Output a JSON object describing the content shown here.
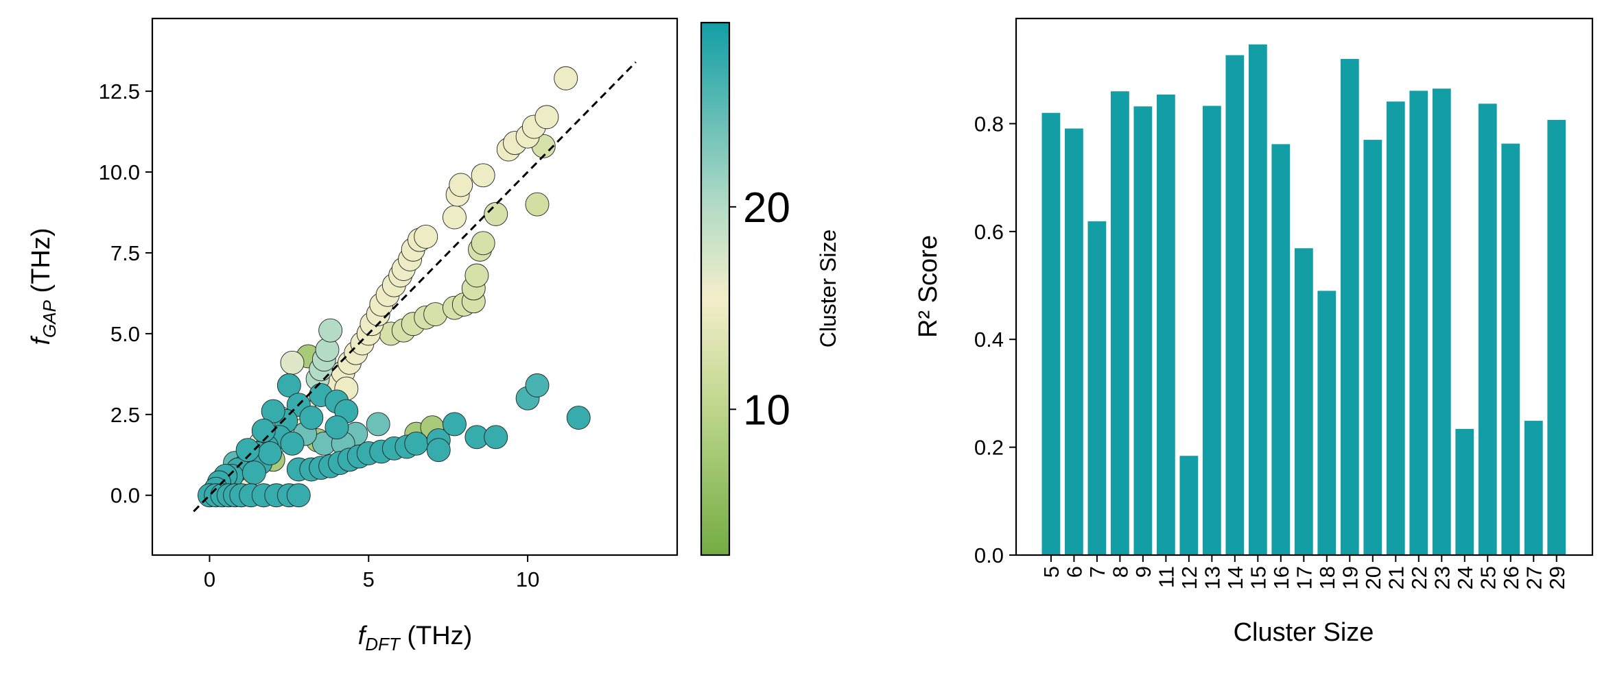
{
  "chart_data": [
    {
      "type": "scatter",
      "xlabel": {
        "main": "f",
        "sub": "DFT",
        "unit": " (THz)"
      },
      "ylabel": {
        "main": "f",
        "sub": "GAP",
        "unit": " (THz)"
      },
      "xlim": [
        -1.8,
        14.7
      ],
      "ylim": [
        -1.85,
        14.75
      ],
      "xticks": [
        0,
        5,
        10
      ],
      "xtick_labels": [
        "0",
        "5",
        "10"
      ],
      "yticks": [
        0,
        2.5,
        5,
        7.5,
        10,
        12.5
      ],
      "ytick_labels": [
        "0.0",
        "2.5",
        "5.0",
        "7.5",
        "10.0",
        "12.5"
      ],
      "reference_line": {
        "from": [
          -0.5,
          -0.5
        ],
        "to": [
          13.4,
          13.4
        ],
        "style": "dashed",
        "color": "#000000"
      },
      "colorbar": {
        "label": "Cluster Size",
        "range": [
          2.8,
          29.1
        ],
        "ticks": [
          10,
          20
        ],
        "tick_labels": [
          "10",
          "20"
        ],
        "stops": [
          {
            "value": 2.8,
            "color": "#74ac43"
          },
          {
            "value": 10,
            "color": "#bdd68c"
          },
          {
            "value": 15.5,
            "color": "#f3eecb"
          },
          {
            "value": 20,
            "color": "#b3dbc6"
          },
          {
            "value": 29.1,
            "color": "#129ea6"
          }
        ]
      },
      "points": [
        {
          "x": 3.8,
          "y": 3.2,
          "c": 15
        },
        {
          "x": 4.0,
          "y": 3.5,
          "c": 15
        },
        {
          "x": 4.2,
          "y": 3.8,
          "c": 15
        },
        {
          "x": 4.4,
          "y": 4.1,
          "c": 15
        },
        {
          "x": 4.6,
          "y": 4.4,
          "c": 15
        },
        {
          "x": 4.8,
          "y": 4.7,
          "c": 15
        },
        {
          "x": 5.0,
          "y": 5.0,
          "c": 15
        },
        {
          "x": 5.1,
          "y": 5.3,
          "c": 15
        },
        {
          "x": 5.3,
          "y": 5.6,
          "c": 15
        },
        {
          "x": 5.4,
          "y": 5.9,
          "c": 15
        },
        {
          "x": 5.6,
          "y": 6.2,
          "c": 15
        },
        {
          "x": 5.8,
          "y": 6.5,
          "c": 15
        },
        {
          "x": 6.0,
          "y": 6.8,
          "c": 15
        },
        {
          "x": 6.1,
          "y": 7.0,
          "c": 15
        },
        {
          "x": 6.3,
          "y": 7.3,
          "c": 15
        },
        {
          "x": 6.4,
          "y": 7.6,
          "c": 15
        },
        {
          "x": 6.6,
          "y": 7.9,
          "c": 15
        },
        {
          "x": 6.8,
          "y": 8.0,
          "c": 15
        },
        {
          "x": 7.7,
          "y": 8.6,
          "c": 15
        },
        {
          "x": 7.8,
          "y": 9.3,
          "c": 15
        },
        {
          "x": 7.9,
          "y": 9.6,
          "c": 15
        },
        {
          "x": 8.6,
          "y": 9.9,
          "c": 15
        },
        {
          "x": 9.4,
          "y": 10.7,
          "c": 15
        },
        {
          "x": 9.6,
          "y": 10.9,
          "c": 15
        },
        {
          "x": 10.0,
          "y": 11.1,
          "c": 15
        },
        {
          "x": 10.2,
          "y": 11.4,
          "c": 15
        },
        {
          "x": 10.6,
          "y": 11.7,
          "c": 15
        },
        {
          "x": 11.2,
          "y": 12.9,
          "c": 15
        },
        {
          "x": 3.0,
          "y": 2.6,
          "c": 15
        },
        {
          "x": 2.6,
          "y": 2.2,
          "c": 15
        },
        {
          "x": 2.2,
          "y": 2.4,
          "c": 15
        },
        {
          "x": 1.9,
          "y": 2.0,
          "c": 15
        },
        {
          "x": 1.6,
          "y": 1.6,
          "c": 15
        },
        {
          "x": 2.2,
          "y": 1.7,
          "c": 15
        },
        {
          "x": 2.9,
          "y": 2.0,
          "c": 15
        },
        {
          "x": 4.3,
          "y": 3.3,
          "c": 15
        },
        {
          "x": 1.2,
          "y": 0.9,
          "c": 15
        },
        {
          "x": 1.0,
          "y": 0.5,
          "c": 15
        },
        {
          "x": 5.7,
          "y": 5.0,
          "c": 12.5
        },
        {
          "x": 6.1,
          "y": 5.1,
          "c": 12.5
        },
        {
          "x": 6.4,
          "y": 5.3,
          "c": 12.5
        },
        {
          "x": 6.8,
          "y": 5.5,
          "c": 12.5
        },
        {
          "x": 7.1,
          "y": 5.6,
          "c": 12.5
        },
        {
          "x": 7.7,
          "y": 5.8,
          "c": 12.5
        },
        {
          "x": 8.0,
          "y": 5.9,
          "c": 12.5
        },
        {
          "x": 8.3,
          "y": 6.0,
          "c": 12.5
        },
        {
          "x": 8.3,
          "y": 6.4,
          "c": 12.5
        },
        {
          "x": 8.4,
          "y": 6.8,
          "c": 12.5
        },
        {
          "x": 8.5,
          "y": 7.6,
          "c": 12.5
        },
        {
          "x": 8.6,
          "y": 7.8,
          "c": 12.5
        },
        {
          "x": 9.0,
          "y": 8.7,
          "c": 12.5
        },
        {
          "x": 10.3,
          "y": 9.0,
          "c": 12
        },
        {
          "x": 10.5,
          "y": 10.8,
          "c": 12.5
        },
        {
          "x": 3.4,
          "y": 3.6,
          "c": 20
        },
        {
          "x": 3.5,
          "y": 3.9,
          "c": 20
        },
        {
          "x": 3.6,
          "y": 4.2,
          "c": 20
        },
        {
          "x": 3.7,
          "y": 4.5,
          "c": 20
        },
        {
          "x": 3.8,
          "y": 5.1,
          "c": 20
        },
        {
          "x": 2.6,
          "y": 4.1,
          "c": 17
        },
        {
          "x": 6.5,
          "y": 1.9,
          "c": 8
        },
        {
          "x": 7.0,
          "y": 2.1,
          "c": 8
        },
        {
          "x": 3.4,
          "y": 1.7,
          "c": 8
        },
        {
          "x": 3.1,
          "y": 4.3,
          "c": 8
        },
        {
          "x": 2.0,
          "y": 1.1,
          "c": 8
        },
        {
          "x": 5.3,
          "y": 2.2,
          "c": 24
        },
        {
          "x": 4.6,
          "y": 1.9,
          "c": 24
        },
        {
          "x": 3.6,
          "y": 1.6,
          "c": 24
        },
        {
          "x": 4.2,
          "y": 1.6,
          "c": 24
        },
        {
          "x": 3.0,
          "y": 1.9,
          "c": 24
        },
        {
          "x": 2.8,
          "y": 0.8,
          "c": 27
        },
        {
          "x": 3.2,
          "y": 0.8,
          "c": 27
        },
        {
          "x": 3.5,
          "y": 0.85,
          "c": 27
        },
        {
          "x": 3.8,
          "y": 0.9,
          "c": 27
        },
        {
          "x": 4.1,
          "y": 1.0,
          "c": 27
        },
        {
          "x": 4.4,
          "y": 1.1,
          "c": 27
        },
        {
          "x": 4.7,
          "y": 1.2,
          "c": 27
        },
        {
          "x": 5.0,
          "y": 1.3,
          "c": 27
        },
        {
          "x": 5.4,
          "y": 1.35,
          "c": 27
        },
        {
          "x": 5.8,
          "y": 1.45,
          "c": 27
        },
        {
          "x": 6.2,
          "y": 1.5,
          "c": 27
        },
        {
          "x": 6.5,
          "y": 1.6,
          "c": 27
        },
        {
          "x": 7.2,
          "y": 1.7,
          "c": 27
        },
        {
          "x": 7.2,
          "y": 1.4,
          "c": 27
        },
        {
          "x": 7.7,
          "y": 2.2,
          "c": 27
        },
        {
          "x": 8.4,
          "y": 1.8,
          "c": 27
        },
        {
          "x": 9.0,
          "y": 1.8,
          "c": 27
        },
        {
          "x": 10.0,
          "y": 3.0,
          "c": 26
        },
        {
          "x": 10.3,
          "y": 3.4,
          "c": 26
        },
        {
          "x": 11.6,
          "y": 2.4,
          "c": 27
        },
        {
          "x": 2.5,
          "y": 3.4,
          "c": 27
        },
        {
          "x": 2.8,
          "y": 2.8,
          "c": 27
        },
        {
          "x": 3.5,
          "y": 3.1,
          "c": 27
        },
        {
          "x": 4.0,
          "y": 2.9,
          "c": 27
        },
        {
          "x": 4.3,
          "y": 2.6,
          "c": 27
        },
        {
          "x": 4.0,
          "y": 2.1,
          "c": 27
        },
        {
          "x": 3.2,
          "y": 2.4,
          "c": 27
        },
        {
          "x": 2.4,
          "y": 2.3,
          "c": 27
        },
        {
          "x": 2.2,
          "y": 1.8,
          "c": 27
        },
        {
          "x": 2.6,
          "y": 1.6,
          "c": 27
        },
        {
          "x": 1.8,
          "y": 1.5,
          "c": 27
        },
        {
          "x": 1.5,
          "y": 1.3,
          "c": 27
        },
        {
          "x": 1.3,
          "y": 1.1,
          "c": 27
        },
        {
          "x": 1.1,
          "y": 0.9,
          "c": 27
        },
        {
          "x": 0.9,
          "y": 0.8,
          "c": 27
        },
        {
          "x": 0.7,
          "y": 0.6,
          "c": 27
        },
        {
          "x": 0.5,
          "y": 0.6,
          "c": 27
        },
        {
          "x": 0.3,
          "y": 0.4,
          "c": 27
        },
        {
          "x": 0.2,
          "y": 0.2,
          "c": 27
        },
        {
          "x": 1.6,
          "y": 1.0,
          "c": 27
        },
        {
          "x": 1.9,
          "y": 1.3,
          "c": 27
        },
        {
          "x": 1.4,
          "y": 0.7,
          "c": 27
        },
        {
          "x": 0.8,
          "y": 1.0,
          "c": 25
        },
        {
          "x": 1.2,
          "y": 1.4,
          "c": 27
        },
        {
          "x": 2.0,
          "y": 2.6,
          "c": 27
        },
        {
          "x": 1.7,
          "y": 2.0,
          "c": 27
        },
        {
          "x": 0.0,
          "y": 0.0,
          "c": 27
        },
        {
          "x": 0.2,
          "y": 0.0,
          "c": 27
        },
        {
          "x": 0.4,
          "y": 0.0,
          "c": 27
        },
        {
          "x": 0.6,
          "y": 0.0,
          "c": 27
        },
        {
          "x": 0.8,
          "y": 0.0,
          "c": 27
        },
        {
          "x": 1.0,
          "y": 0.0,
          "c": 27
        },
        {
          "x": 1.3,
          "y": 0.0,
          "c": 27
        },
        {
          "x": 1.7,
          "y": 0.0,
          "c": 27
        },
        {
          "x": 2.1,
          "y": 0.0,
          "c": 27
        },
        {
          "x": 2.5,
          "y": 0.0,
          "c": 27
        },
        {
          "x": 2.8,
          "y": 0.0,
          "c": 27
        }
      ]
    },
    {
      "type": "bar",
      "xlabel": "Cluster Size",
      "ylabel": "R² Score",
      "categories": [
        "5",
        "6",
        "7",
        "8",
        "9",
        "11",
        "12",
        "13",
        "14",
        "15",
        "16",
        "17",
        "18",
        "19",
        "20",
        "21",
        "22",
        "23",
        "24",
        "25",
        "26",
        "27",
        "29"
      ],
      "values": [
        0.82,
        0.791,
        0.619,
        0.86,
        0.832,
        0.854,
        0.184,
        0.833,
        0.927,
        0.947,
        0.762,
        0.569,
        0.49,
        0.92,
        0.77,
        0.841,
        0.861,
        0.865,
        0.234,
        0.837,
        0.763,
        0.249,
        0.807
      ],
      "ylim": [
        0,
        0.995
      ],
      "xlim": [
        -1.52,
        23.56
      ],
      "yticks": [
        0,
        0.2,
        0.4,
        0.6,
        0.8
      ],
      "ytick_labels": [
        "0.0",
        "0.2",
        "0.4",
        "0.6",
        "0.8"
      ],
      "bar_color": "#139ea6"
    }
  ]
}
